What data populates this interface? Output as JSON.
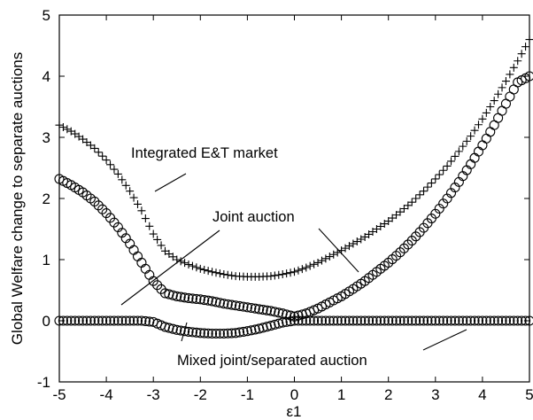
{
  "chart_data": {
    "type": "scatter",
    "xlabel": "ε1",
    "ylabel": "Global Welfare change to separate auctions",
    "xlim": [
      -5,
      5
    ],
    "ylim": [
      -1,
      5
    ],
    "x_ticks": [
      "-5",
      "-4",
      "-3",
      "-2",
      "-1",
      "0",
      "1",
      "2",
      "3",
      "4",
      "5"
    ],
    "y_ticks": [
      "-1",
      "0",
      "1",
      "2",
      "3",
      "4",
      "5"
    ],
    "grid": false,
    "legend": "none",
    "annotations": [
      {
        "text": "Integrated E&T market"
      },
      {
        "text": "Joint auction"
      },
      {
        "text": "Mixed joint/separated auction"
      }
    ],
    "series": [
      {
        "marker": "plus",
        "x": [
          -5.0,
          -4.75,
          -4.5,
          -4.25,
          -4.0,
          -3.75,
          -3.5,
          -3.25,
          -3.0,
          -2.75,
          -2.5,
          -2.25,
          -2.0,
          -1.75,
          -1.5,
          -1.25,
          -1.0,
          -0.75,
          -0.5,
          -0.25,
          0.0,
          0.25,
          0.5,
          0.75,
          1.0,
          1.25,
          1.5,
          1.75,
          2.0,
          2.25,
          2.5,
          2.75,
          3.0,
          3.25,
          3.5,
          3.75,
          4.0,
          4.25,
          4.5,
          4.75,
          5.0
        ],
        "y": [
          3.2,
          3.1,
          2.97,
          2.82,
          2.63,
          2.4,
          2.12,
          1.8,
          1.42,
          1.14,
          1.0,
          0.92,
          0.85,
          0.8,
          0.76,
          0.73,
          0.72,
          0.72,
          0.73,
          0.76,
          0.8,
          0.87,
          0.95,
          1.05,
          1.15,
          1.26,
          1.37,
          1.5,
          1.63,
          1.78,
          1.94,
          2.12,
          2.32,
          2.53,
          2.77,
          3.02,
          3.3,
          3.6,
          3.92,
          4.25,
          4.6
        ]
      },
      {
        "marker": "circle",
        "x": [
          -5.0,
          -4.75,
          -4.5,
          -4.25,
          -4.0,
          -3.75,
          -3.5,
          -3.25,
          -3.0,
          -2.75,
          -2.5,
          -2.25,
          -2.0,
          -1.75,
          -1.5,
          -1.25,
          -1.0,
          -0.75,
          -0.5,
          -0.25,
          0.0,
          0.25,
          0.5,
          0.75,
          1.0,
          1.25,
          1.5,
          1.75,
          2.0,
          2.25,
          2.5,
          2.75,
          3.0,
          3.25,
          3.5,
          3.75,
          4.0,
          4.25,
          4.5,
          4.75,
          5.0
        ],
        "y": [
          2.32,
          2.22,
          2.1,
          1.95,
          1.76,
          1.53,
          1.26,
          0.95,
          0.65,
          0.45,
          0.4,
          0.37,
          0.35,
          0.32,
          0.28,
          0.25,
          0.22,
          0.19,
          0.16,
          0.12,
          0.07,
          0.12,
          0.2,
          0.3,
          0.4,
          0.52,
          0.65,
          0.8,
          0.95,
          1.12,
          1.31,
          1.52,
          1.75,
          2.0,
          2.27,
          2.56,
          2.87,
          3.2,
          3.55,
          3.9,
          4.0
        ]
      },
      {
        "marker": "circle",
        "x": [
          -5.0,
          -4.75,
          -4.5,
          -4.25,
          -4.0,
          -3.75,
          -3.5,
          -3.25,
          -3.0,
          -2.75,
          -2.5,
          -2.25,
          -2.0,
          -1.75,
          -1.5,
          -1.25,
          -1.0,
          -0.75,
          -0.5,
          -0.25,
          0.0,
          0.25,
          0.5,
          0.75,
          1.0,
          1.25,
          1.5,
          1.75,
          2.0,
          2.25,
          2.5,
          2.75,
          3.0,
          3.25,
          3.5,
          3.75,
          4.0,
          4.25,
          4.5,
          4.75,
          5.0
        ],
        "y": [
          0.0,
          0.0,
          0.0,
          0.0,
          0.0,
          0.0,
          0.0,
          0.0,
          -0.02,
          -0.1,
          -0.15,
          -0.18,
          -0.2,
          -0.21,
          -0.21,
          -0.2,
          -0.17,
          -0.13,
          -0.08,
          -0.03,
          0.0,
          0.0,
          0.0,
          0.0,
          0.0,
          0.0,
          0.0,
          0.0,
          0.0,
          0.0,
          0.0,
          0.0,
          0.0,
          0.0,
          0.0,
          0.0,
          0.0,
          0.0,
          0.0,
          0.0,
          0.0
        ]
      }
    ]
  }
}
